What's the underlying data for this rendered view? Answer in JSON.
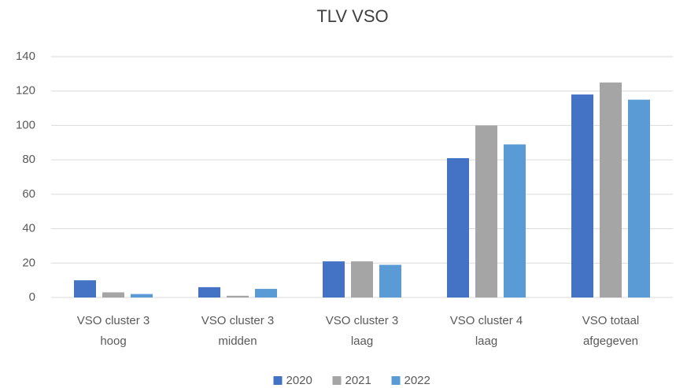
{
  "chart_data": {
    "type": "bar",
    "title": "TLV VSO",
    "categories": [
      [
        "VSO cluster 3",
        "hoog"
      ],
      [
        "VSO cluster 3",
        "midden"
      ],
      [
        "VSO cluster 3",
        "laag"
      ],
      [
        "VSO cluster 4",
        "laag"
      ],
      [
        "VSO totaal",
        "afgegeven"
      ]
    ],
    "series": [
      {
        "name": "2020",
        "color": "#4472c4",
        "values": [
          10,
          6,
          21,
          81,
          118
        ]
      },
      {
        "name": "2021",
        "color": "#a5a5a5",
        "values": [
          3,
          1,
          21,
          100,
          125
        ]
      },
      {
        "name": "2022",
        "color": "#5b9bd5",
        "values": [
          2,
          5,
          19,
          89,
          115
        ]
      }
    ],
    "ylim": [
      0,
      140
    ],
    "yticks": [
      0,
      20,
      40,
      60,
      80,
      100,
      120,
      140
    ],
    "grid": true,
    "legend": "bottom"
  }
}
